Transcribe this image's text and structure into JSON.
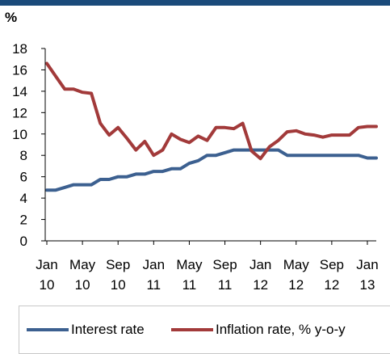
{
  "chart_data": {
    "type": "line",
    "ylabel": "%",
    "ylim": [
      0,
      18
    ],
    "yticks": [
      "0",
      "2",
      "4",
      "6",
      "8",
      "10",
      "12",
      "14",
      "16",
      "18"
    ],
    "xtick_labels": [
      {
        "month": "Jan",
        "year": "10"
      },
      {
        "month": "May",
        "year": "10"
      },
      {
        "month": "Sep",
        "year": "10"
      },
      {
        "month": "Jan",
        "year": "11"
      },
      {
        "month": "May",
        "year": "11"
      },
      {
        "month": "Sep",
        "year": "11"
      },
      {
        "month": "Jan",
        "year": "12"
      },
      {
        "month": "May",
        "year": "12"
      },
      {
        "month": "Sep",
        "year": "12"
      },
      {
        "month": "Jan",
        "year": "13"
      }
    ],
    "x": [
      "2010-01",
      "2010-02",
      "2010-03",
      "2010-04",
      "2010-05",
      "2010-06",
      "2010-07",
      "2010-08",
      "2010-09",
      "2010-10",
      "2010-11",
      "2010-12",
      "2011-01",
      "2011-02",
      "2011-03",
      "2011-04",
      "2011-05",
      "2011-06",
      "2011-07",
      "2011-08",
      "2011-09",
      "2011-10",
      "2011-11",
      "2011-12",
      "2012-01",
      "2012-02",
      "2012-03",
      "2012-04",
      "2012-05",
      "2012-06",
      "2012-07",
      "2012-08",
      "2012-09",
      "2012-10",
      "2012-11",
      "2012-12",
      "2013-01",
      "2013-02"
    ],
    "series": [
      {
        "name": "Interest rate",
        "color": "#3c6090",
        "values": [
          4.75,
          4.75,
          5.0,
          5.25,
          5.25,
          5.25,
          5.75,
          5.75,
          6.0,
          6.0,
          6.25,
          6.25,
          6.5,
          6.5,
          6.75,
          6.75,
          7.25,
          7.5,
          8.0,
          8.0,
          8.25,
          8.5,
          8.5,
          8.5,
          8.5,
          8.5,
          8.5,
          8.0,
          8.0,
          8.0,
          8.0,
          8.0,
          8.0,
          8.0,
          8.0,
          8.0,
          7.75,
          7.75
        ]
      },
      {
        "name": "Inflation rate, % y-o-y",
        "color": "#a23a3a",
        "values": [
          16.6,
          15.4,
          14.2,
          14.2,
          13.9,
          13.8,
          11.0,
          9.9,
          10.6,
          9.6,
          8.5,
          9.3,
          8.0,
          8.5,
          10.0,
          9.5,
          9.2,
          9.8,
          9.4,
          10.6,
          10.6,
          10.5,
          11.0,
          8.4,
          7.7,
          8.8,
          9.4,
          10.2,
          10.3,
          10.0,
          9.9,
          9.7,
          9.9,
          9.9,
          9.9,
          10.6,
          10.7,
          10.7
        ]
      }
    ],
    "grid": false,
    "legend_position": "bottom"
  },
  "colors": {
    "top_bar": "#1a4a7a",
    "axis": "#000000",
    "legend_border": "#c8c8c8"
  }
}
